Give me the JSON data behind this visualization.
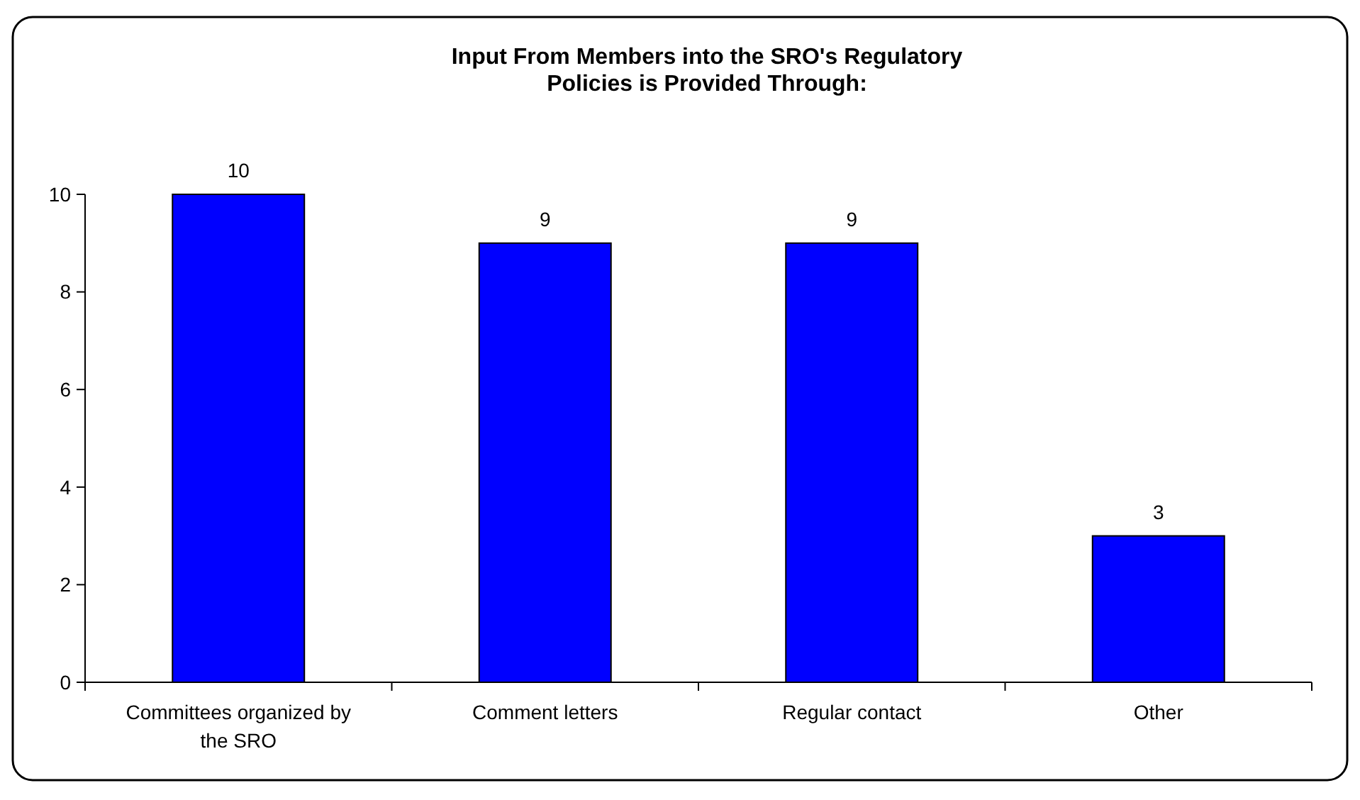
{
  "chart_data": {
    "type": "bar",
    "title": "Input From Members into the SRO's Regulatory Policies is Provided Through:",
    "categories": [
      "Committees organized by the SRO",
      "Comment letters",
      "Regular contact",
      "Other"
    ],
    "values": [
      10,
      9,
      9,
      3
    ],
    "color": "#0000ff",
    "ylim": [
      0,
      10
    ],
    "yticks": [
      0,
      2,
      4,
      6,
      8,
      10
    ],
    "data_labels": true,
    "grid": false
  }
}
